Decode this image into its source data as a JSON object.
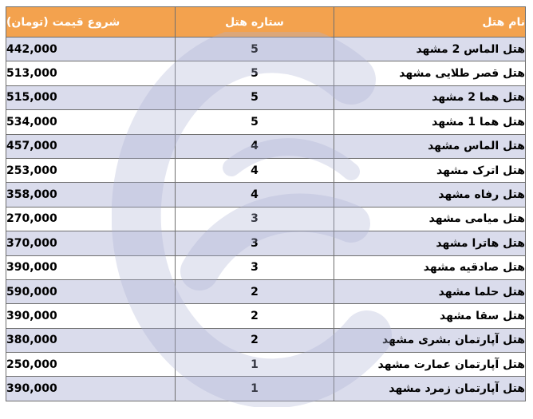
{
  "table": {
    "headers": {
      "name": "نام هتل",
      "stars": "ستاره هتل",
      "price": "شروع قیمت (تومان)"
    },
    "rows": [
      {
        "name": "هتل الماس 2 مشهد",
        "stars": "5",
        "price": "442,000"
      },
      {
        "name": "هتل قصر طلایی مشهد",
        "stars": "5",
        "price": "513,000"
      },
      {
        "name": "هتل هما 2 مشهد",
        "stars": "5",
        "price": "515,000"
      },
      {
        "name": "هتل هما 1 مشهد",
        "stars": "5",
        "price": "534,000"
      },
      {
        "name": "هتل الماس مشهد",
        "stars": "4",
        "price": "457,000"
      },
      {
        "name": "هتل اترک مشهد",
        "stars": "4",
        "price": "253,000"
      },
      {
        "name": "هتل رفاه مشهد",
        "stars": "4",
        "price": "358,000"
      },
      {
        "name": "هتل میامی مشهد",
        "stars": "3",
        "price": "270,000"
      },
      {
        "name": "هتل هاترا مشهد",
        "stars": "3",
        "price": "370,000"
      },
      {
        "name": "هتل صادقیه مشهد",
        "stars": "3",
        "price": "390,000"
      },
      {
        "name": "هتل حلما مشهد",
        "stars": "2",
        "price": "590,000"
      },
      {
        "name": "هتل سقا مشهد",
        "stars": "2",
        "price": "390,000"
      },
      {
        "name": "هتل آپارتمان بشری مشهد",
        "stars": "2",
        "price": "380,000"
      },
      {
        "name": "هتل آپارتمان عمارت مشهد",
        "stars": "1",
        "price": "250,000"
      },
      {
        "name": "هتل آپارتمان زمرد مشهد",
        "stars": "1",
        "price": "390,000"
      }
    ]
  },
  "colors": {
    "header_bg": "#f3a24e",
    "stripe_bg": "#dadcec",
    "watermark": "#aab0d4"
  },
  "watermark": {
    "icon": "circular-logo-watermark-icon"
  }
}
